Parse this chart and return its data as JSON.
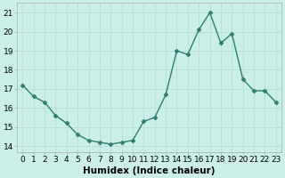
{
  "x": [
    0,
    1,
    2,
    3,
    4,
    5,
    6,
    7,
    8,
    9,
    10,
    11,
    12,
    13,
    14,
    15,
    16,
    17,
    18,
    19,
    20,
    21,
    22,
    23
  ],
  "y": [
    17.2,
    16.6,
    16.3,
    15.6,
    15.2,
    14.6,
    14.3,
    14.2,
    14.1,
    14.2,
    14.3,
    15.3,
    15.5,
    16.7,
    19.0,
    18.8,
    20.1,
    21.0,
    19.4,
    19.9,
    17.5,
    16.9,
    16.9,
    16.3
  ],
  "line_color": "#2e7d6e",
  "marker": "D",
  "marker_size": 2.5,
  "bg_color": "#cceee8",
  "grid_color": "#b8ddd8",
  "xlabel": "Humidex (Indice chaleur)",
  "ylabel_ticks": [
    14,
    15,
    16,
    17,
    18,
    19,
    20,
    21
  ],
  "xlim": [
    -0.5,
    23.5
  ],
  "ylim": [
    13.7,
    21.5
  ],
  "xticks": [
    0,
    1,
    2,
    3,
    4,
    5,
    6,
    7,
    8,
    9,
    10,
    11,
    12,
    13,
    14,
    15,
    16,
    17,
    18,
    19,
    20,
    21,
    22,
    23
  ],
  "xlabel_fontsize": 7.5,
  "tick_fontsize": 6.5,
  "linewidth": 1.0
}
